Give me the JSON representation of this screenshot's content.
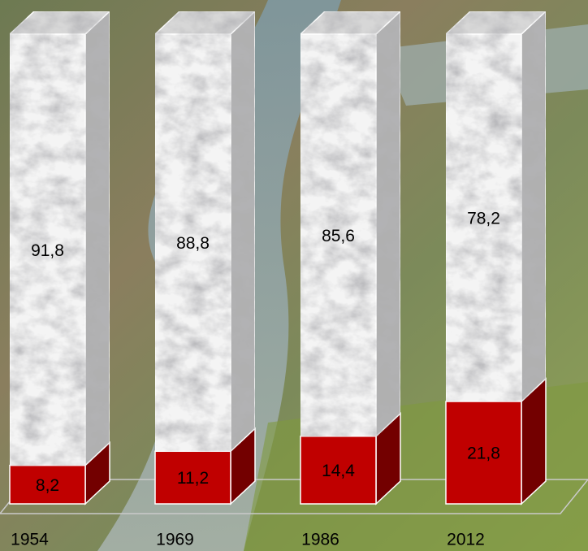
{
  "chart_data": {
    "type": "stacked-bar-3d",
    "categories": [
      "1954",
      "1969",
      "1986",
      "2012"
    ],
    "series": [
      {
        "color": "#c00000",
        "values": [
          8.2,
          11.2,
          14.4,
          21.8
        ],
        "value_labels": [
          "8,2",
          "11,2",
          "14,4",
          "21,8"
        ]
      },
      {
        "color": "#f4f4f4",
        "values": [
          91.8,
          88.8,
          85.6,
          78.2
        ],
        "value_labels": [
          "91,8",
          "88,8",
          "85,6",
          "78,2"
        ]
      }
    ]
  }
}
